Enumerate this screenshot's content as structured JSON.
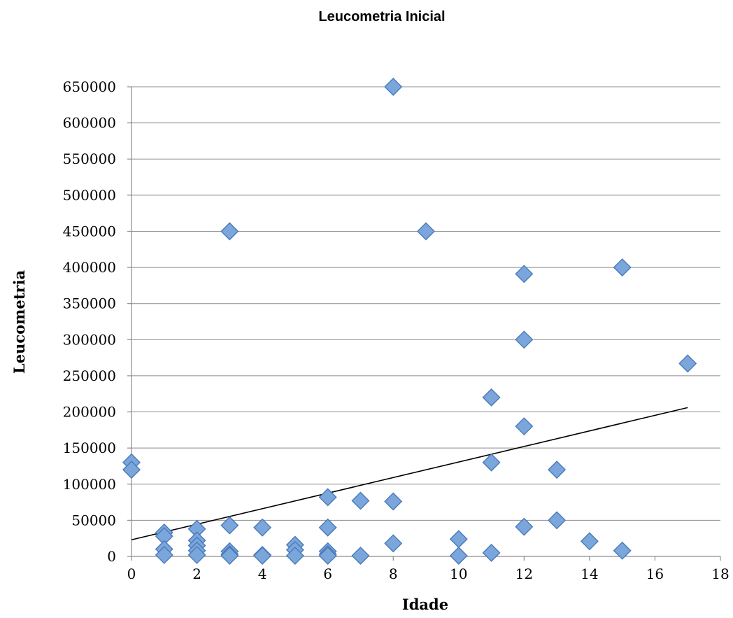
{
  "chart_data": {
    "type": "scatter",
    "title": "Leucometria Inicial",
    "xlabel": "Idade",
    "ylabel": "Leucometria",
    "xlim": [
      0,
      18
    ],
    "ylim": [
      0,
      650000
    ],
    "x_ticks": [
      0,
      2,
      4,
      6,
      8,
      10,
      12,
      14,
      16,
      18
    ],
    "y_ticks": [
      0,
      50000,
      100000,
      150000,
      200000,
      250000,
      300000,
      350000,
      400000,
      450000,
      500000,
      550000,
      600000,
      650000
    ],
    "grid": true,
    "legend": "none",
    "marker_color": "#7aa6dc",
    "marker_edge_color": "#4a7ab8",
    "marker_shape": "diamond",
    "trendline": {
      "type": "linear",
      "x": [
        0,
        17
      ],
      "y": [
        23000,
        206000
      ],
      "color": "#000000"
    },
    "series": [
      {
        "points": [
          {
            "x": 0,
            "y": 130000
          },
          {
            "x": 0,
            "y": 120000
          },
          {
            "x": 1,
            "y": 33000
          },
          {
            "x": 1,
            "y": 28000
          },
          {
            "x": 1,
            "y": 10000
          },
          {
            "x": 1,
            "y": 2000
          },
          {
            "x": 2,
            "y": 38000
          },
          {
            "x": 2,
            "y": 22000
          },
          {
            "x": 2,
            "y": 15000
          },
          {
            "x": 2,
            "y": 8000
          },
          {
            "x": 2,
            "y": 2000
          },
          {
            "x": 3,
            "y": 450000
          },
          {
            "x": 3,
            "y": 43000
          },
          {
            "x": 3,
            "y": 7000
          },
          {
            "x": 3,
            "y": 3000
          },
          {
            "x": 3,
            "y": 1000
          },
          {
            "x": 4,
            "y": 40000
          },
          {
            "x": 4,
            "y": 2000
          },
          {
            "x": 4,
            "y": 1000
          },
          {
            "x": 5,
            "y": 16000
          },
          {
            "x": 5,
            "y": 9000
          },
          {
            "x": 5,
            "y": 1000
          },
          {
            "x": 6,
            "y": 82000
          },
          {
            "x": 6,
            "y": 40000
          },
          {
            "x": 6,
            "y": 7000
          },
          {
            "x": 6,
            "y": 3000
          },
          {
            "x": 6,
            "y": 1000
          },
          {
            "x": 7,
            "y": 77000
          },
          {
            "x": 7,
            "y": 1000
          },
          {
            "x": 8,
            "y": 650000
          },
          {
            "x": 8,
            "y": 76000
          },
          {
            "x": 8,
            "y": 18000
          },
          {
            "x": 9,
            "y": 450000
          },
          {
            "x": 10,
            "y": 24000
          },
          {
            "x": 10,
            "y": 1000
          },
          {
            "x": 11,
            "y": 220000
          },
          {
            "x": 11,
            "y": 130000
          },
          {
            "x": 11,
            "y": 5000
          },
          {
            "x": 12,
            "y": 391000
          },
          {
            "x": 12,
            "y": 300000
          },
          {
            "x": 12,
            "y": 180000
          },
          {
            "x": 12,
            "y": 41000
          },
          {
            "x": 13,
            "y": 120000
          },
          {
            "x": 13,
            "y": 50000
          },
          {
            "x": 14,
            "y": 21000
          },
          {
            "x": 15,
            "y": 400000
          },
          {
            "x": 15,
            "y": 8000
          },
          {
            "x": 17,
            "y": 267000
          }
        ]
      }
    ]
  }
}
